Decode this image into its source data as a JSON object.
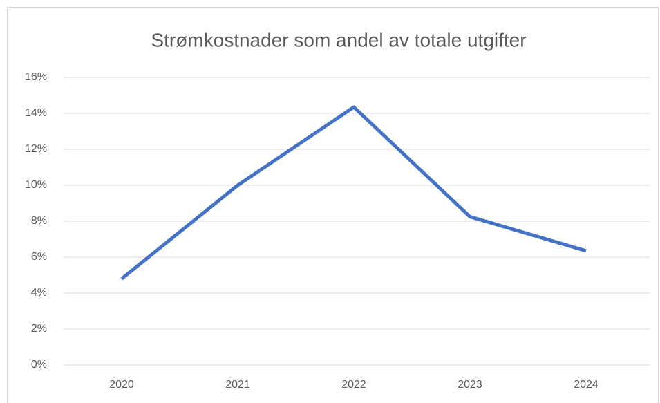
{
  "chart_data": {
    "type": "line",
    "title": "Strømkostnader som andel av totale utgifter",
    "categories": [
      "2020",
      "2021",
      "2022",
      "2023",
      "2024"
    ],
    "series": [
      {
        "name": "Strømkostnader",
        "color": "#4472c4",
        "values": [
          4.8,
          10.0,
          14.35,
          8.25,
          6.35
        ]
      }
    ],
    "ylim": [
      0,
      16
    ],
    "yticks": [
      {
        "value": 0,
        "label": "0%"
      },
      {
        "value": 2,
        "label": "2%"
      },
      {
        "value": 4,
        "label": "4%"
      },
      {
        "value": 6,
        "label": "6%"
      },
      {
        "value": 8,
        "label": "8%"
      },
      {
        "value": 10,
        "label": "10%"
      },
      {
        "value": 12,
        "label": "12%"
      },
      {
        "value": 14,
        "label": "14%"
      },
      {
        "value": 16,
        "label": "16%"
      }
    ],
    "grid": true,
    "legend": false
  }
}
